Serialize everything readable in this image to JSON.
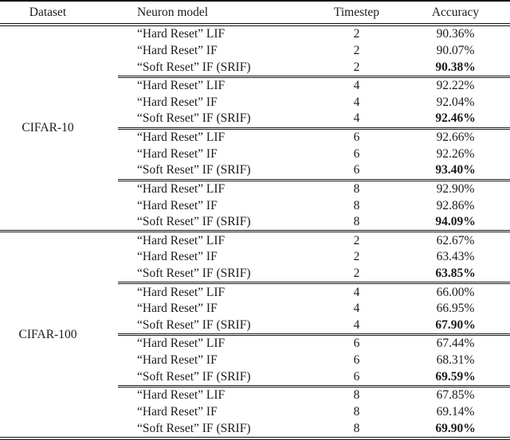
{
  "header": {
    "dataset": "Dataset",
    "neuron_model": "Neuron model",
    "timestep": "Timestep",
    "accuracy": "Accuracy"
  },
  "groups": [
    {
      "dataset": "CIFAR-10",
      "blocks": [
        {
          "timestep": "2",
          "rows": [
            {
              "model": "“Hard Reset” LIF",
              "accuracy": "90.36%",
              "bold": false
            },
            {
              "model": "“Hard Reset” IF",
              "accuracy": "90.07%",
              "bold": false
            },
            {
              "model": "“Soft Reset” IF (SRIF)",
              "accuracy": "90.38%",
              "bold": true
            }
          ]
        },
        {
          "timestep": "4",
          "rows": [
            {
              "model": "“Hard Reset” LIF",
              "accuracy": "92.22%",
              "bold": false
            },
            {
              "model": "“Hard Reset” IF",
              "accuracy": "92.04%",
              "bold": false
            },
            {
              "model": "“Soft Reset” IF (SRIF)",
              "accuracy": "92.46%",
              "bold": true
            }
          ]
        },
        {
          "timestep": "6",
          "rows": [
            {
              "model": "“Hard Reset” LIF",
              "accuracy": "92.66%",
              "bold": false
            },
            {
              "model": "“Hard Reset” IF",
              "accuracy": "92.26%",
              "bold": false
            },
            {
              "model": "“Soft Reset” IF (SRIF)",
              "accuracy": "93.40%",
              "bold": true
            }
          ]
        },
        {
          "timestep": "8",
          "rows": [
            {
              "model": "“Hard Reset” LIF",
              "accuracy": "92.90%",
              "bold": false
            },
            {
              "model": "“Hard Reset” IF",
              "accuracy": "92.86%",
              "bold": false
            },
            {
              "model": "“Soft Reset” IF (SRIF)",
              "accuracy": "94.09%",
              "bold": true
            }
          ]
        }
      ]
    },
    {
      "dataset": "CIFAR-100",
      "blocks": [
        {
          "timestep": "2",
          "rows": [
            {
              "model": "“Hard Reset” LIF",
              "accuracy": "62.67%",
              "bold": false
            },
            {
              "model": "“Hard Reset” IF",
              "accuracy": "63.43%",
              "bold": false
            },
            {
              "model": "“Soft Reset” IF (SRIF)",
              "accuracy": "63.85%",
              "bold": true
            }
          ]
        },
        {
          "timestep": "4",
          "rows": [
            {
              "model": "“Hard Reset” LIF",
              "accuracy": "66.00%",
              "bold": false
            },
            {
              "model": "“Hard Reset” IF",
              "accuracy": "66.95%",
              "bold": false
            },
            {
              "model": "“Soft Reset” IF (SRIF)",
              "accuracy": "67.90%",
              "bold": true
            }
          ]
        },
        {
          "timestep": "6",
          "rows": [
            {
              "model": "“Hard Reset” LIF",
              "accuracy": "67.44%",
              "bold": false
            },
            {
              "model": "“Hard Reset” IF",
              "accuracy": "68.31%",
              "bold": false
            },
            {
              "model": "“Soft Reset” IF (SRIF)",
              "accuracy": "69.59%",
              "bold": true
            }
          ]
        },
        {
          "timestep": "8",
          "rows": [
            {
              "model": "“Hard Reset” LIF",
              "accuracy": "67.85%",
              "bold": false
            },
            {
              "model": "“Hard Reset” IF",
              "accuracy": "69.14%",
              "bold": false
            },
            {
              "model": "“Soft Reset” IF (SRIF)",
              "accuracy": "69.90%",
              "bold": true
            }
          ]
        }
      ]
    }
  ]
}
